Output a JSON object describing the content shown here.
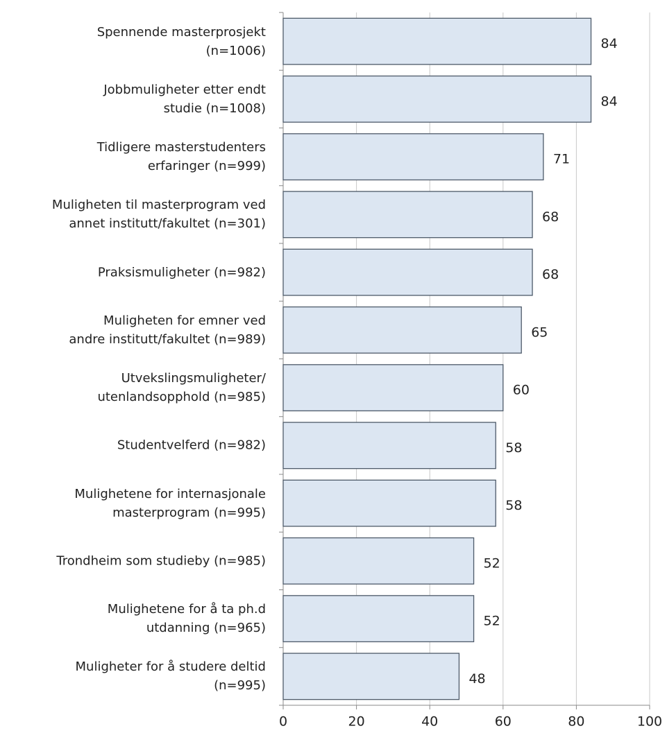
{
  "chart_data": {
    "type": "bar",
    "orientation": "horizontal",
    "categories": [
      "Spennende masterprosjekt\n(n=1006)",
      "Jobbmuligheter etter endt\nstudie (n=1008)",
      "Tidligere masterstudenters\nerfaringer (n=999)",
      "Muligheten til masterprogram ved\nannet institutt/fakultet (n=301)",
      "Praksismuligheter (n=982)",
      "Muligheten for emner ved\nandre institutt/fakultet (n=989)",
      "Utvekslingsmuligheter/\nutenlandsopphold (n=985)",
      "Studentvelferd (n=982)",
      "Mulighetene for internasjonale\nmasterprogram (n=995)",
      "Trondheim som studieby (n=985)",
      "Mulighetene for å ta ph.d\nutdanning (n=965)",
      "Muligheter for å studere deltid\n(n=995)"
    ],
    "values": [
      84,
      84,
      71,
      68,
      68,
      65,
      60,
      58,
      58,
      52,
      52,
      48
    ],
    "color": "#dce6f2",
    "xlim": [
      0,
      100
    ],
    "xticks": [
      0,
      20,
      40,
      60,
      80,
      100
    ],
    "grid": true
  }
}
